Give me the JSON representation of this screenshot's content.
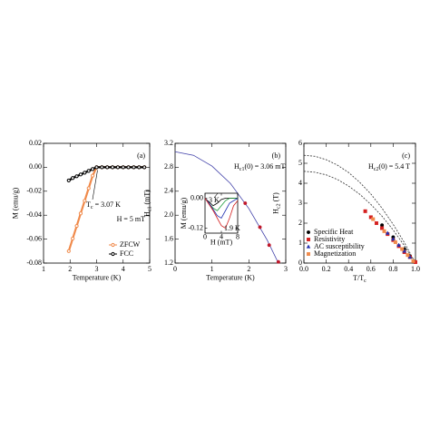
{
  "chart_data": [
    {
      "type": "line",
      "xlabel": "Temperature (K)",
      "ylabel": "M (emu/g)",
      "xlim": [
        1,
        5
      ],
      "xticks": [
        1,
        2,
        3,
        4,
        5
      ],
      "ylim": [
        -0.08,
        0.02
      ],
      "yticks": [
        -0.08,
        -0.06,
        -0.04,
        -0.02,
        {
          "value": 0,
          "label": "0.00"
        },
        0.02
      ],
      "legend": "lower right",
      "annotations": [
        [
          {
            "text": "(a)"
          }
        ],
        [
          {
            "text": "T"
          },
          {
            "text": "c",
            "sub": true
          },
          {
            "text": " = 3.07 K"
          }
        ],
        [
          {
            "text": "H = 5 mT"
          }
        ]
      ],
      "series": [
        {
          "name": "ZFCW",
          "color": "#f08a4b",
          "marker": "circle",
          "filled": false,
          "line": true,
          "x": [
            1.95,
            2.1,
            2.25,
            2.4,
            2.55,
            2.7,
            2.85,
            3.0,
            3.2,
            3.4,
            3.6,
            3.8,
            4.0,
            4.2,
            4.4,
            4.6,
            4.8
          ],
          "values": [
            -0.07,
            -0.0595,
            -0.049,
            -0.0385,
            -0.028,
            -0.0175,
            -0.007,
            0,
            0,
            0,
            0,
            0,
            0,
            0,
            0,
            0,
            0
          ]
        },
        {
          "name": "FCC",
          "color": "#000000",
          "marker": "circle",
          "filled": false,
          "line": true,
          "x": [
            1.95,
            2.1,
            2.25,
            2.4,
            2.55,
            2.7,
            2.85,
            3.0,
            3.2,
            3.4,
            3.6,
            3.8,
            4.0,
            4.2,
            4.4,
            4.6,
            4.8
          ],
          "values": [
            -0.011,
            -0.009,
            -0.0075,
            -0.006,
            -0.0045,
            -0.003,
            -0.0015,
            0,
            0,
            0,
            0,
            0,
            0,
            0,
            0,
            0,
            0
          ]
        }
      ]
    },
    {
      "type": "line",
      "xlabel": "Temperature (K)",
      "ylabel": [
        {
          "text": "H"
        },
        {
          "text": "c1",
          "sub": true
        },
        {
          "text": " (mT)"
        }
      ],
      "xlim": [
        0,
        3
      ],
      "xticks": [
        0,
        1,
        2,
        3
      ],
      "ylim": [
        1.2,
        3.2
      ],
      "yticks": [
        1.2,
        1.6,
        {
          "value": 2,
          "label": "2.0"
        },
        2.4,
        2.8,
        3.2
      ],
      "annotations": [
        [
          {
            "text": "(b)"
          }
        ],
        [
          {
            "text": "H"
          },
          {
            "text": "c1",
            "sub": true
          },
          {
            "text": "(0) = 3.06 mT"
          }
        ]
      ],
      "series": [
        {
          "color": "#3f3fa8",
          "marker": "none",
          "line": true,
          "x": [
            0,
            0.5,
            1,
            1.5,
            2,
            2.5,
            2.8
          ],
          "values": [
            3.06,
            3.0,
            2.82,
            2.53,
            2.11,
            1.58,
            1.2
          ]
        },
        {
          "color": "#c0182a",
          "marker": "circle",
          "filled": true,
          "line": false,
          "x": [
            1.9,
            2.3,
            2.55,
            2.8
          ],
          "values": [
            2.2,
            1.8,
            1.5,
            1.22
          ]
        }
      ]
    },
    {
      "type": "line",
      "xlabel": [
        {
          "text": "T/T"
        },
        {
          "text": "c",
          "sub": true
        }
      ],
      "ylabel": [
        {
          "text": "H"
        },
        {
          "text": "c2",
          "sub": true
        },
        {
          "text": " (T)"
        }
      ],
      "xlim": [
        0,
        1
      ],
      "xticks": [
        {
          "value": 0,
          "label": "0.0"
        },
        0.2,
        0.4,
        0.6,
        0.8,
        {
          "value": 1,
          "label": "1.0"
        }
      ],
      "ylim": [
        0,
        6
      ],
      "yticks": [
        0,
        1,
        2,
        3,
        4,
        5,
        6
      ],
      "legend": "lower left",
      "annotations": [
        [
          {
            "text": "(c)"
          }
        ],
        [
          {
            "text": "H"
          },
          {
            "text": "c2",
            "sub": true
          },
          {
            "text": "(0) = 5.4 T"
          }
        ]
      ],
      "series": [
        {
          "color": "#333333",
          "marker": "none",
          "line": true,
          "dash": true,
          "x": [
            0,
            0.1,
            0.2,
            0.3,
            0.4,
            0.5,
            0.6,
            0.7,
            0.8,
            0.9,
            1.0
          ],
          "values": [
            5.4,
            5.35,
            5.18,
            4.91,
            4.54,
            4.05,
            3.46,
            2.75,
            1.94,
            1.03,
            0
          ]
        },
        {
          "color": "#333333",
          "marker": "none",
          "line": true,
          "dash": true,
          "x": [
            0,
            0.1,
            0.2,
            0.3,
            0.4,
            0.5,
            0.6,
            0.7,
            0.8,
            0.9,
            1.0
          ],
          "values": [
            4.6,
            4.55,
            4.42,
            4.19,
            3.86,
            3.45,
            2.94,
            2.35,
            1.66,
            0.87,
            0
          ]
        },
        {
          "name": "Specific Heat",
          "color": "#000000",
          "marker": "circle",
          "filled": true,
          "line": false,
          "x": [
            0.7,
            0.8,
            0.9,
            0.95
          ],
          "values": [
            1.9,
            1.3,
            0.7,
            0.35
          ]
        },
        {
          "name": "Resistivity",
          "color": "#d42020",
          "marker": "square",
          "filled": true,
          "line": false,
          "x": [
            0.55,
            0.6,
            0.65,
            0.7,
            0.75,
            0.8,
            0.85,
            0.9,
            0.95,
            1.0
          ],
          "values": [
            2.6,
            2.3,
            2.0,
            1.75,
            1.45,
            1.15,
            0.85,
            0.55,
            0.3,
            0.05
          ]
        },
        {
          "name": "AC susceptibility",
          "color": "#2030b0",
          "marker": "triangle",
          "filled": true,
          "line": false,
          "x": [
            0.75,
            0.8,
            0.85,
            0.9,
            0.95
          ],
          "values": [
            1.5,
            1.2,
            0.9,
            0.6,
            0.3
          ]
        },
        {
          "name": "Magnetization",
          "color": "#f08a4b",
          "marker": "square",
          "filled": true,
          "line": false,
          "x": [
            0.62,
            0.72,
            0.82,
            0.88,
            0.93,
            0.98
          ],
          "values": [
            2.2,
            1.6,
            1.05,
            0.7,
            0.4,
            0.1
          ]
        }
      ]
    },
    {
      "type": "line",
      "xlabel": "H (mT)",
      "ylabel": "M (emu/g)",
      "xlim": [
        0,
        8
      ],
      "xticks": [
        0,
        4,
        8
      ],
      "ylim": [
        -0.14,
        0.02
      ],
      "yticks": [
        -0.12,
        {
          "value": 0,
          "label": "0.00"
        }
      ],
      "annotations": [
        [
          {
            "text": "3 K"
          }
        ],
        [
          {
            "text": "1.9 K"
          }
        ]
      ],
      "series": [
        {
          "color": "#000000",
          "marker": "none",
          "line": true,
          "x": [
            0,
            1,
            2,
            3,
            4,
            5,
            6,
            7,
            8
          ],
          "values": [
            0,
            -0.015,
            -0.03,
            -0.02,
            -0.005,
            0,
            0,
            0,
            0
          ]
        },
        {
          "color": "#1a9a3a",
          "marker": "none",
          "line": true,
          "x": [
            0,
            1,
            2,
            3,
            4,
            5,
            6,
            7,
            8
          ],
          "values": [
            0,
            -0.02,
            -0.04,
            -0.05,
            -0.03,
            -0.01,
            0,
            0,
            0
          ]
        },
        {
          "color": "#2030b0",
          "marker": "none",
          "line": true,
          "x": [
            0,
            1,
            2,
            3,
            4,
            5,
            6,
            7,
            8
          ],
          "values": [
            0,
            -0.02,
            -0.045,
            -0.07,
            -0.08,
            -0.05,
            -0.02,
            -0.01,
            0
          ]
        },
        {
          "color": "#d42020",
          "marker": "none",
          "line": true,
          "x": [
            0,
            1,
            2,
            3,
            4,
            5,
            6,
            7,
            8
          ],
          "values": [
            0,
            -0.025,
            -0.05,
            -0.08,
            -0.11,
            -0.12,
            -0.08,
            -0.03,
            -0.01
          ]
        }
      ]
    }
  ]
}
